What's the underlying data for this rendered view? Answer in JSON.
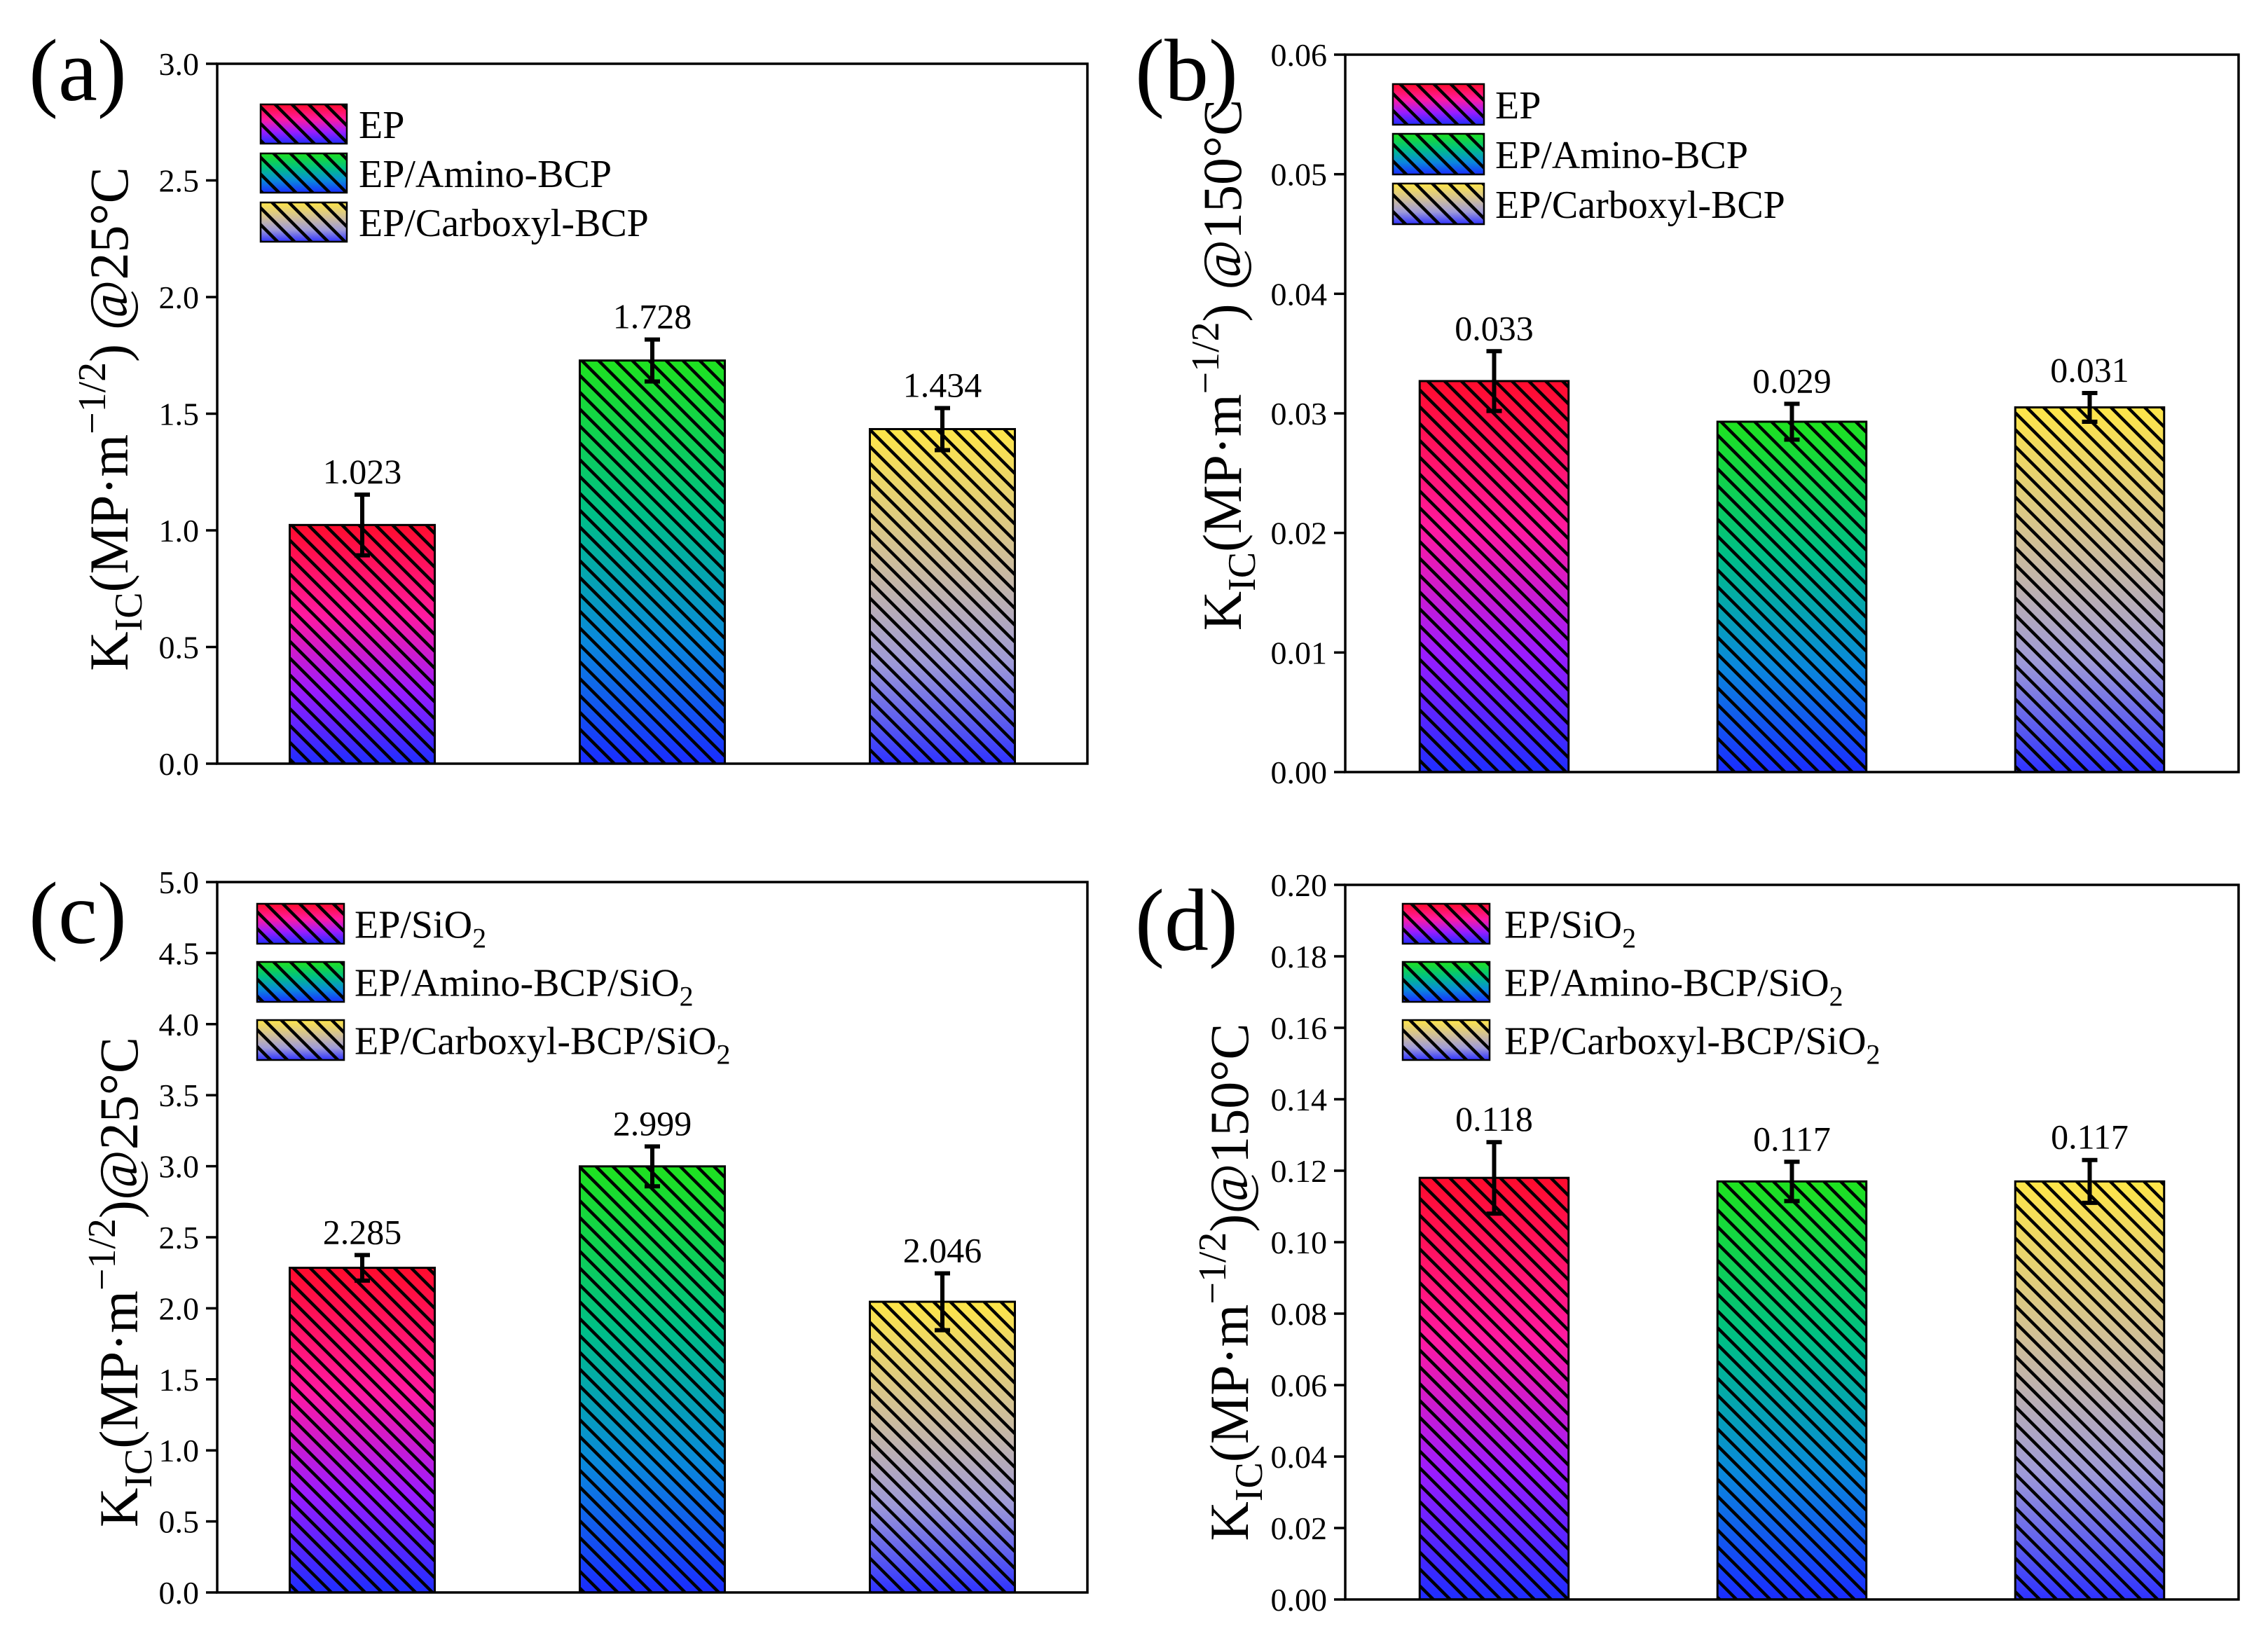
{
  "chart_data": [
    {
      "panel_label": "(a)",
      "type": "bar",
      "ylabel": {
        "k": "K",
        "sub": "IC",
        "unit": "(MP·m",
        "sup": "−1/2",
        "suffix": ") @25°C"
      },
      "ylim": [
        0,
        3.0
      ],
      "yticks": [
        "0.0",
        "0.5",
        "1.0",
        "1.5",
        "2.0",
        "2.5",
        "3.0"
      ],
      "grid": false,
      "legend_position": "top-left",
      "series": [
        {
          "name": "EP",
          "value": 1.023,
          "error": 0.13,
          "data_label": "1.023",
          "colors": [
            "#ff0c2c",
            "#ff1aa0",
            "#9a1cff",
            "#1e2eff"
          ]
        },
        {
          "name": "EP/Amino-BCP",
          "value": 1.728,
          "error": 0.09,
          "data_label": "1.728",
          "colors": [
            "#1fe21f",
            "#00bf86",
            "#0a88dc",
            "#1a2cff"
          ]
        },
        {
          "name": "EP/Carboxyl-BCP",
          "value": 1.434,
          "error": 0.09,
          "data_label": "1.434",
          "colors": [
            "#ffe648",
            "#d0bf98",
            "#9e9ad8",
            "#2e32ff"
          ]
        }
      ]
    },
    {
      "panel_label": "(b)",
      "type": "bar",
      "ylabel": {
        "k": "K",
        "sub": "IC",
        "unit": "(MP·m",
        "sup": "−1/2",
        "suffix": ") @150°C"
      },
      "ylim": [
        0,
        0.06
      ],
      "yticks": [
        "0.00",
        "0.01",
        "0.02",
        "0.03",
        "0.04",
        "0.05",
        "0.06"
      ],
      "grid": false,
      "legend_position": "top-left",
      "series": [
        {
          "name": "EP",
          "value": 0.0327,
          "error": 0.0025,
          "data_label": "0.033",
          "colors": [
            "#ff0c2c",
            "#ff1aa0",
            "#9a1cff",
            "#1e2eff"
          ]
        },
        {
          "name": "EP/Amino-BCP",
          "value": 0.0293,
          "error": 0.0015,
          "data_label": "0.029",
          "colors": [
            "#1fe21f",
            "#00bf86",
            "#0a88dc",
            "#1a2cff"
          ]
        },
        {
          "name": "EP/Carboxyl-BCP",
          "value": 0.0305,
          "error": 0.0012,
          "data_label": "0.031",
          "colors": [
            "#ffe648",
            "#d0bf98",
            "#9e9ad8",
            "#2e32ff"
          ]
        }
      ]
    },
    {
      "panel_label": "(c)",
      "type": "bar",
      "ylabel": {
        "k": "K",
        "sub": "IC",
        "unit": "(MP·m",
        "sup": "−1/2",
        "suffix": ")@25°C"
      },
      "ylim": [
        0,
        5.0
      ],
      "yticks": [
        "0.0",
        "0.5",
        "1.0",
        "1.5",
        "2.0",
        "2.5",
        "3.0",
        "3.5",
        "4.0",
        "4.5",
        "5.0"
      ],
      "grid": false,
      "legend_position": "top-left",
      "series": [
        {
          "name": "EP/SiO",
          "name_sub": "2",
          "value": 2.285,
          "error": 0.09,
          "data_label": "2.285",
          "colors": [
            "#ff0c2c",
            "#ff1aa0",
            "#9a1cff",
            "#1e2eff"
          ]
        },
        {
          "name": "EP/Amino-BCP/SiO",
          "name_sub": "2",
          "value": 2.999,
          "error": 0.14,
          "data_label": "2.999",
          "colors": [
            "#1fe21f",
            "#00bf86",
            "#0a88dc",
            "#1a2cff"
          ]
        },
        {
          "name": "EP/Carboxyl-BCP/SiO",
          "name_sub": "2",
          "value": 2.046,
          "error": 0.2,
          "data_label": "2.046",
          "colors": [
            "#ffe648",
            "#d0bf98",
            "#9e9ad8",
            "#2e32ff"
          ]
        }
      ]
    },
    {
      "panel_label": "(d)",
      "type": "bar",
      "ylabel": {
        "k": "K",
        "sub": "IC",
        "unit": "(MP·m",
        "sup": "−1/2",
        "suffix": ")@150°C"
      },
      "ylim": [
        0,
        0.2
      ],
      "yticks": [
        "0.00",
        "0.02",
        "0.04",
        "0.06",
        "0.08",
        "0.10",
        "0.12",
        "0.14",
        "0.16",
        "0.18",
        "0.20"
      ],
      "grid": false,
      "legend_position": "top-left",
      "series": [
        {
          "name": "EP/SiO",
          "name_sub": "2",
          "value": 0.118,
          "error": 0.01,
          "data_label": "0.118",
          "colors": [
            "#ff0c2c",
            "#ff1aa0",
            "#9a1cff",
            "#1e2eff"
          ]
        },
        {
          "name": "EP/Amino-BCP/SiO",
          "name_sub": "2",
          "value": 0.117,
          "error": 0.0055,
          "data_label": "0.117",
          "colors": [
            "#1fe21f",
            "#00bf86",
            "#0a88dc",
            "#1a2cff"
          ]
        },
        {
          "name": "EP/Carboxyl-BCP/SiO",
          "name_sub": "2",
          "value": 0.117,
          "error": 0.006,
          "data_label": "0.117",
          "colors": [
            "#ffe648",
            "#d0bf98",
            "#9e9ad8",
            "#2e32ff"
          ]
        }
      ]
    }
  ]
}
